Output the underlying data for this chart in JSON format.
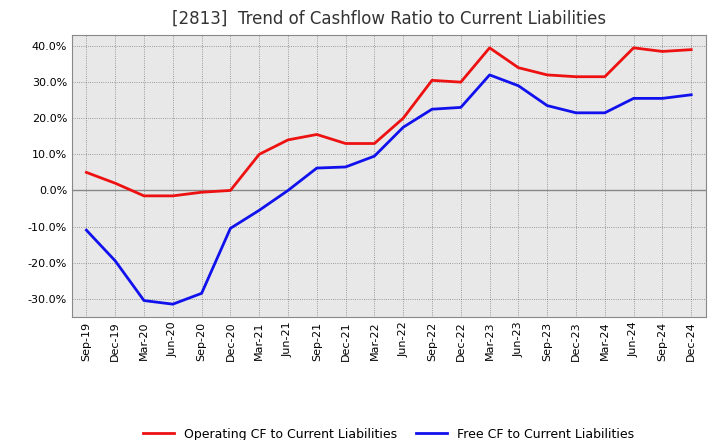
{
  "title": "[2813]  Trend of Cashflow Ratio to Current Liabilities",
  "x_labels": [
    "Sep-19",
    "Dec-19",
    "Mar-20",
    "Jun-20",
    "Sep-20",
    "Dec-20",
    "Mar-21",
    "Jun-21",
    "Sep-21",
    "Dec-21",
    "Mar-22",
    "Jun-22",
    "Sep-22",
    "Dec-22",
    "Mar-23",
    "Jun-23",
    "Sep-23",
    "Dec-23",
    "Mar-24",
    "Jun-24",
    "Sep-24",
    "Dec-24"
  ],
  "operating_cf": [
    0.05,
    0.02,
    -0.015,
    -0.015,
    -0.005,
    0.0,
    0.1,
    0.14,
    0.155,
    0.13,
    0.13,
    0.2,
    0.305,
    0.3,
    0.395,
    0.34,
    0.32,
    0.315,
    0.315,
    0.395,
    0.385,
    0.39
  ],
  "free_cf": [
    -0.11,
    -0.195,
    -0.305,
    -0.315,
    -0.285,
    -0.105,
    -0.055,
    0.0,
    0.062,
    0.065,
    0.095,
    0.175,
    0.225,
    0.23,
    0.32,
    0.29,
    0.235,
    0.215,
    0.215,
    0.255,
    0.255,
    0.265
  ],
  "operating_color": "#EE1111",
  "free_color": "#1111EE",
  "ylim": [
    -0.35,
    0.43
  ],
  "yticks": [
    -0.3,
    -0.2,
    -0.1,
    0.0,
    0.1,
    0.2,
    0.3,
    0.4
  ],
  "background_color": "#FFFFFF",
  "plot_bg_color": "#E8E8E8",
  "grid_color": "#555555",
  "zero_line_color": "#888888",
  "legend_op": "Operating CF to Current Liabilities",
  "legend_free": "Free CF to Current Liabilities",
  "title_fontsize": 12,
  "axis_fontsize": 8,
  "legend_fontsize": 9,
  "line_width": 2.0
}
